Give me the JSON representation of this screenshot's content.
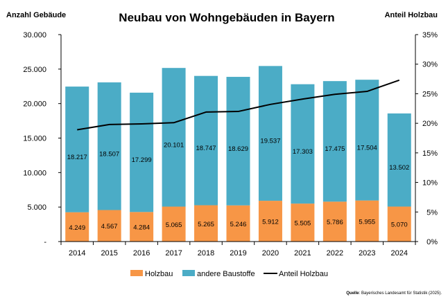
{
  "chart_data": {
    "type": "bar",
    "stacked": true,
    "title": "Neubau von Wohngebäuden in Bayern",
    "ylabel_left": "Anzahl Gebäude",
    "ylabel_right": "Anteil Holzbau",
    "categories": [
      "2014",
      "2015",
      "2016",
      "2017",
      "2018",
      "2019",
      "2020",
      "2021",
      "2022",
      "2023",
      "2024"
    ],
    "series": [
      {
        "name": "Holzbau",
        "color": "#f79646",
        "values": [
          4249,
          4567,
          4284,
          5065,
          5265,
          5246,
          5912,
          5505,
          5786,
          5955,
          5070
        ],
        "labels": [
          "4.249",
          "4.567",
          "4.284",
          "5.065",
          "5.265",
          "5.246",
          "5.912",
          "5.505",
          "5.786",
          "5.955",
          "5.070"
        ]
      },
      {
        "name": "andere Baustoffe",
        "color": "#4bacc6",
        "values": [
          18217,
          18507,
          17299,
          20101,
          18747,
          18629,
          19537,
          17303,
          17475,
          17504,
          13502
        ],
        "labels": [
          "18.217",
          "18.507",
          "17.299",
          "20.101",
          "18.747",
          "18.629",
          "19.537",
          "17.303",
          "17.475",
          "17.504",
          "13.502"
        ]
      },
      {
        "name": "Anteil Holzbau",
        "type": "line",
        "axis": "right",
        "color": "#000000",
        "values": [
          18.9,
          19.8,
          19.9,
          20.1,
          21.9,
          22.0,
          23.2,
          24.1,
          24.9,
          25.4,
          27.3
        ]
      }
    ],
    "ylim_left": [
      0,
      30000
    ],
    "ylim_right": [
      0,
      35
    ],
    "yticks_left": [
      "-",
      "5.000",
      "10.000",
      "15.000",
      "20.000",
      "25.000",
      "30.000"
    ],
    "yticks_right": [
      "0%",
      "5%",
      "10%",
      "15%",
      "20%",
      "25%",
      "30%",
      "35%"
    ],
    "legend": "bottom",
    "grid": false
  },
  "source": {
    "label": "Quelle",
    "text": ": Bayerisches Landesamt für Statistik (2025)."
  }
}
